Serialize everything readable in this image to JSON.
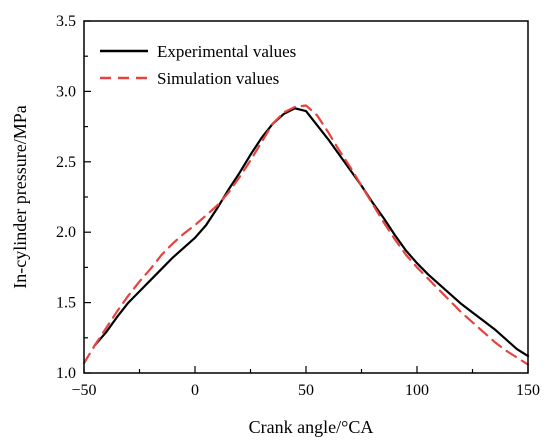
{
  "chart_data": {
    "type": "line",
    "title": "",
    "xlabel": "Crank angle/°CA",
    "ylabel": "In-cylinder pressure/MPa",
    "xlim": [
      -50,
      150
    ],
    "ylim": [
      1.0,
      3.5
    ],
    "xticks": [
      -50,
      0,
      50,
      100,
      150
    ],
    "yticks": [
      1.0,
      1.5,
      2.0,
      2.5,
      3.0,
      3.5
    ],
    "xtick_labels": [
      "−50",
      "0",
      "50",
      "100",
      "150"
    ],
    "ytick_labels": [
      "1.0",
      "1.5",
      "2.0",
      "2.5",
      "3.0",
      "3.5"
    ],
    "grid": false,
    "legend_position": "top-left",
    "series": [
      {
        "name": "Experimental values",
        "color": "#000000",
        "style": "solid",
        "x": [
          -45,
          -40,
          -35,
          -30,
          -25,
          -20,
          -15,
          -10,
          -5,
          0,
          5,
          10,
          15,
          20,
          25,
          30,
          35,
          40,
          45,
          50,
          55,
          60,
          65,
          70,
          75,
          80,
          85,
          90,
          95,
          100,
          105,
          110,
          115,
          120,
          125,
          130,
          135,
          140,
          145,
          150
        ],
        "values": [
          1.2,
          1.29,
          1.4,
          1.5,
          1.58,
          1.66,
          1.74,
          1.82,
          1.89,
          1.96,
          2.05,
          2.17,
          2.3,
          2.42,
          2.55,
          2.67,
          2.77,
          2.84,
          2.88,
          2.86,
          2.76,
          2.66,
          2.55,
          2.44,
          2.33,
          2.21,
          2.1,
          1.98,
          1.87,
          1.78,
          1.7,
          1.63,
          1.56,
          1.49,
          1.43,
          1.37,
          1.31,
          1.24,
          1.17,
          1.12
        ]
      },
      {
        "name": "Simulation values",
        "color": "#e8423f",
        "style": "dashed",
        "x": [
          -50,
          -45,
          -40,
          -35,
          -30,
          -25,
          -20,
          -15,
          -10,
          -5,
          0,
          5,
          10,
          15,
          20,
          25,
          30,
          35,
          40,
          45,
          50,
          55,
          60,
          65,
          70,
          75,
          80,
          85,
          90,
          95,
          100,
          105,
          110,
          115,
          120,
          125,
          130,
          135,
          140,
          145,
          150
        ],
        "values": [
          1.07,
          1.2,
          1.32,
          1.44,
          1.55,
          1.65,
          1.74,
          1.84,
          1.92,
          1.99,
          2.05,
          2.12,
          2.19,
          2.28,
          2.39,
          2.51,
          2.64,
          2.77,
          2.85,
          2.89,
          2.9,
          2.83,
          2.71,
          2.58,
          2.46,
          2.33,
          2.2,
          2.07,
          1.95,
          1.84,
          1.75,
          1.67,
          1.59,
          1.51,
          1.43,
          1.36,
          1.29,
          1.22,
          1.16,
          1.11,
          1.06
        ]
      }
    ]
  }
}
